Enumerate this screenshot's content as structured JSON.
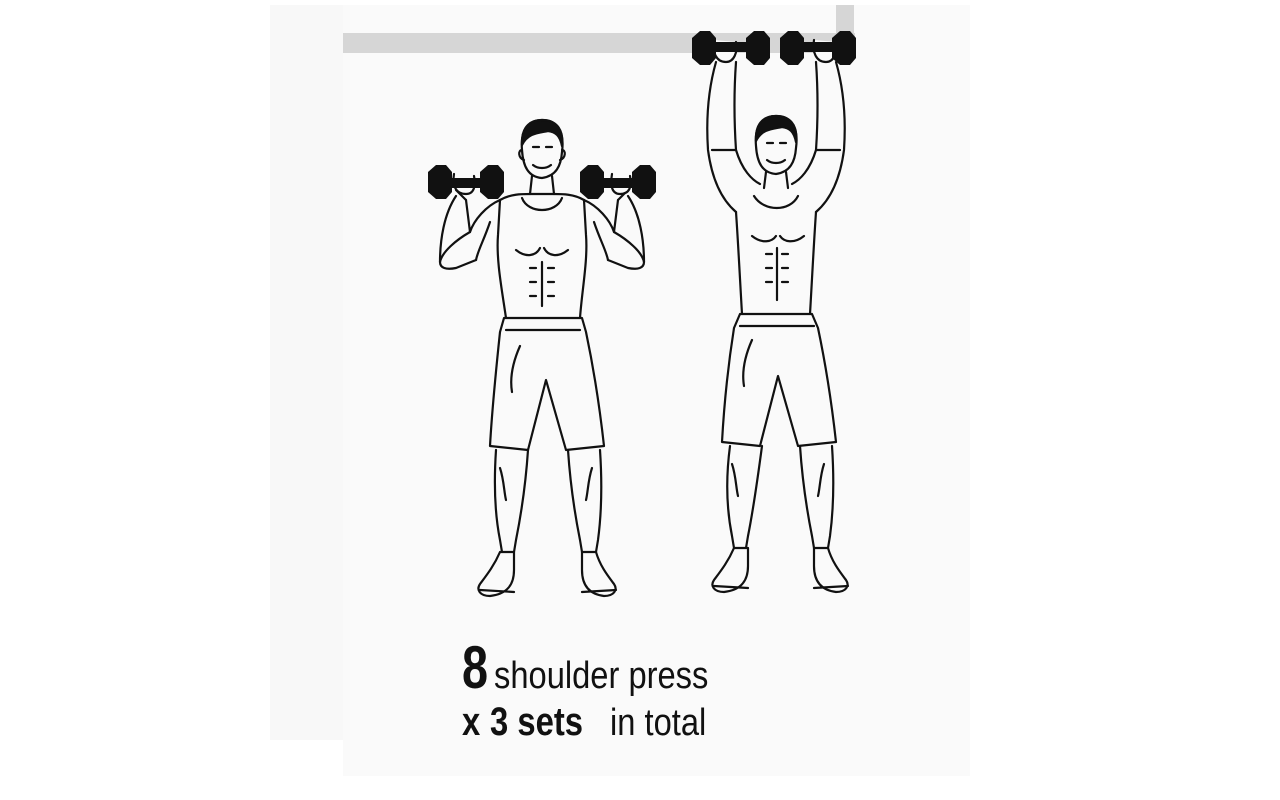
{
  "exercise": {
    "reps": "8",
    "name": "shoulder press",
    "multiplier": "x",
    "sets": "3 sets",
    "suffix": "in total"
  },
  "illustration": {
    "figures": [
      "start-position-figure",
      "end-position-figure"
    ],
    "stroke_color": "#111111",
    "bar_color": "#d6d6d6",
    "dumbbell_color": "#111111"
  }
}
